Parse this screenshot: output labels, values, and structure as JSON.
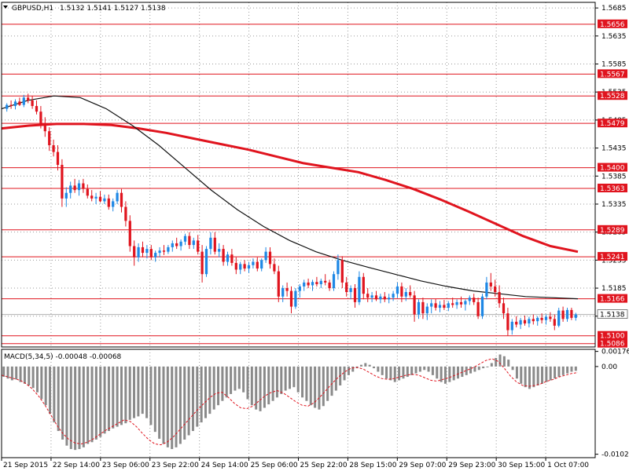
{
  "header": {
    "symbol": "GBPUSD,H1",
    "ohlc": "1.5132 1.5141 1.5127 1.5138"
  },
  "macd_header": "MACD(5,34,5) -0.00048 -0.00068",
  "colors": {
    "bull": "#1e88e5",
    "bear": "#e0141e",
    "level": "#e0141e",
    "ma_fast": "#111111",
    "ma_slow": "#e0141e",
    "grid": "#9a9a9a",
    "macd_hist": "#8a8a8a",
    "macd_signal": "#e0141e"
  },
  "chart_data": [
    {
      "type": "candlestick",
      "title": "GBPUSD,H1",
      "x_labels": [
        "21 Sep 2015",
        "22 Sep 14:00",
        "23 Sep 06:00",
        "23 Sep 22:00",
        "24 Sep 14:00",
        "25 Sep 06:00",
        "25 Sep 22:00",
        "28 Sep 15:00",
        "29 Sep 07:00",
        "29 Sep 23:00",
        "30 Sep 15:00",
        "1 Oct 07:00"
      ],
      "y_ticks": [
        "1.5685",
        "1.5635",
        "1.5585",
        "1.5535",
        "1.5485",
        "1.5435",
        "1.5385",
        "1.5335",
        "1.5285",
        "1.5235",
        "1.5185",
        "1.5135"
      ],
      "ylim": [
        1.508,
        1.5695
      ],
      "levels": [
        "1.5656",
        "1.5567",
        "1.5528",
        "1.5479",
        "1.5400",
        "1.5363",
        "1.5289",
        "1.5241",
        "1.5166",
        "1.5100",
        "1.5086"
      ],
      "current_price": "1.5138",
      "candles": [
        [
          1.5505,
          1.5515,
          1.55,
          1.5512
        ],
        [
          1.5512,
          1.552,
          1.5505,
          1.551
        ],
        [
          1.551,
          1.5522,
          1.5504,
          1.5518
        ],
        [
          1.5518,
          1.5525,
          1.551,
          1.5512
        ],
        [
          1.5512,
          1.553,
          1.5508,
          1.5525
        ],
        [
          1.5525,
          1.5532,
          1.5515,
          1.552
        ],
        [
          1.552,
          1.5528,
          1.5505,
          1.551
        ],
        [
          1.551,
          1.552,
          1.5495,
          1.55
        ],
        [
          1.55,
          1.551,
          1.547,
          1.5475
        ],
        [
          1.5475,
          1.549,
          1.5455,
          1.5465
        ],
        [
          1.5465,
          1.5472,
          1.543,
          1.544
        ],
        [
          1.544,
          1.545,
          1.542,
          1.5428
        ],
        [
          1.5428,
          1.544,
          1.5395,
          1.5405
        ],
        [
          1.5405,
          1.5415,
          1.533,
          1.5345
        ],
        [
          1.5345,
          1.5365,
          1.533,
          1.5355
        ],
        [
          1.5355,
          1.5375,
          1.5345,
          1.5368
        ],
        [
          1.5368,
          1.538,
          1.5355,
          1.536
        ],
        [
          1.536,
          1.5378,
          1.535,
          1.5372
        ],
        [
          1.5372,
          1.538,
          1.5355,
          1.5362
        ],
        [
          1.5362,
          1.537,
          1.5345,
          1.535
        ],
        [
          1.535,
          1.536,
          1.534,
          1.5345
        ],
        [
          1.5345,
          1.5355,
          1.5335,
          1.5348
        ],
        [
          1.5348,
          1.5358,
          1.5338,
          1.534
        ],
        [
          1.534,
          1.5352,
          1.5335,
          1.5345
        ],
        [
          1.5345,
          1.5352,
          1.5325,
          1.533
        ],
        [
          1.533,
          1.5345,
          1.5322,
          1.534
        ],
        [
          1.534,
          1.536,
          1.5335,
          1.5355
        ],
        [
          1.5355,
          1.5362,
          1.532,
          1.533
        ],
        [
          1.533,
          1.534,
          1.5295,
          1.5305
        ],
        [
          1.5305,
          1.5315,
          1.525,
          1.526
        ],
        [
          1.526,
          1.527,
          1.5225,
          1.524
        ],
        [
          1.524,
          1.5265,
          1.5232,
          1.5258
        ],
        [
          1.5258,
          1.5268,
          1.524,
          1.5248
        ],
        [
          1.5248,
          1.5262,
          1.5238,
          1.5255
        ],
        [
          1.5255,
          1.5262,
          1.5235,
          1.524
        ],
        [
          1.524,
          1.5252,
          1.5232,
          1.5248
        ],
        [
          1.5248,
          1.5258,
          1.524,
          1.5252
        ],
        [
          1.5252,
          1.5262,
          1.5244,
          1.525
        ],
        [
          1.525,
          1.5262,
          1.5246,
          1.5258
        ],
        [
          1.5258,
          1.527,
          1.525,
          1.5265
        ],
        [
          1.5265,
          1.5275,
          1.5255,
          1.526
        ],
        [
          1.526,
          1.5272,
          1.5252,
          1.5268
        ],
        [
          1.5268,
          1.5282,
          1.5262,
          1.5278
        ],
        [
          1.5278,
          1.5285,
          1.5255,
          1.5262
        ],
        [
          1.5262,
          1.5275,
          1.5255,
          1.527
        ],
        [
          1.527,
          1.528,
          1.5245,
          1.525
        ],
        [
          1.525,
          1.5262,
          1.5195,
          1.521
        ],
        [
          1.521,
          1.526,
          1.5205,
          1.5255
        ],
        [
          1.5255,
          1.5285,
          1.5245,
          1.5275
        ],
        [
          1.5275,
          1.5285,
          1.5245,
          1.525
        ],
        [
          1.525,
          1.5265,
          1.524,
          1.5255
        ],
        [
          1.5255,
          1.5262,
          1.5225,
          1.5232
        ],
        [
          1.5232,
          1.525,
          1.5225,
          1.5245
        ],
        [
          1.5245,
          1.5255,
          1.5225,
          1.523
        ],
        [
          1.523,
          1.524,
          1.521,
          1.5218
        ],
        [
          1.5218,
          1.5232,
          1.521,
          1.5228
        ],
        [
          1.5228,
          1.5235,
          1.5215,
          1.522
        ],
        [
          1.522,
          1.5232,
          1.5212,
          1.5226
        ],
        [
          1.5226,
          1.5238,
          1.522,
          1.5232
        ],
        [
          1.5232,
          1.524,
          1.5215,
          1.522
        ],
        [
          1.522,
          1.5238,
          1.5215,
          1.5235
        ],
        [
          1.5235,
          1.5258,
          1.523,
          1.525
        ],
        [
          1.525,
          1.5258,
          1.522,
          1.5228
        ],
        [
          1.5228,
          1.5238,
          1.521,
          1.5215
        ],
        [
          1.5215,
          1.5225,
          1.516,
          1.517
        ],
        [
          1.517,
          1.519,
          1.516,
          1.5185
        ],
        [
          1.5185,
          1.5195,
          1.517,
          1.518
        ],
        [
          1.518,
          1.5188,
          1.514,
          1.5152
        ],
        [
          1.5152,
          1.5185,
          1.5148,
          1.518
        ],
        [
          1.518,
          1.5192,
          1.5168,
          1.5188
        ],
        [
          1.5188,
          1.52,
          1.518,
          1.5195
        ],
        [
          1.5195,
          1.5202,
          1.5185,
          1.519
        ],
        [
          1.519,
          1.52,
          1.518,
          1.5196
        ],
        [
          1.5196,
          1.5205,
          1.5188,
          1.5192
        ],
        [
          1.5192,
          1.5202,
          1.5185,
          1.5198
        ],
        [
          1.5198,
          1.521,
          1.519,
          1.5195
        ],
        [
          1.5195,
          1.52,
          1.518,
          1.5185
        ],
        [
          1.5185,
          1.5215,
          1.518,
          1.521
        ],
        [
          1.521,
          1.5245,
          1.52,
          1.5235
        ],
        [
          1.5235,
          1.5242,
          1.5185,
          1.5195
        ],
        [
          1.5195,
          1.5205,
          1.517,
          1.5178
        ],
        [
          1.5178,
          1.519,
          1.5165,
          1.5185
        ],
        [
          1.5185,
          1.5192,
          1.515,
          1.516
        ],
        [
          1.516,
          1.5215,
          1.5155,
          1.5205
        ],
        [
          1.5205,
          1.5212,
          1.5165,
          1.5175
        ],
        [
          1.5175,
          1.5185,
          1.516,
          1.5168
        ],
        [
          1.5168,
          1.5178,
          1.516,
          1.5172
        ],
        [
          1.5172,
          1.518,
          1.5162,
          1.5165
        ],
        [
          1.5165,
          1.5175,
          1.5158,
          1.517
        ],
        [
          1.517,
          1.5178,
          1.516,
          1.5165
        ],
        [
          1.5165,
          1.5175,
          1.5158,
          1.5168
        ],
        [
          1.5168,
          1.518,
          1.5162,
          1.5175
        ],
        [
          1.5175,
          1.5195,
          1.5168,
          1.5188
        ],
        [
          1.5188,
          1.5195,
          1.516,
          1.517
        ],
        [
          1.517,
          1.5185,
          1.5162,
          1.5178
        ],
        [
          1.5178,
          1.519,
          1.5168,
          1.5172
        ],
        [
          1.5172,
          1.518,
          1.5125,
          1.5138
        ],
        [
          1.5138,
          1.5165,
          1.513,
          1.516
        ],
        [
          1.516,
          1.5168,
          1.513,
          1.514
        ],
        [
          1.514,
          1.5158,
          1.5128,
          1.5152
        ],
        [
          1.5152,
          1.5165,
          1.514,
          1.5158
        ],
        [
          1.5158,
          1.5166,
          1.5145,
          1.515
        ],
        [
          1.515,
          1.5162,
          1.5142,
          1.5155
        ],
        [
          1.5155,
          1.5164,
          1.5146,
          1.515
        ],
        [
          1.515,
          1.5162,
          1.5144,
          1.5158
        ],
        [
          1.5158,
          1.5168,
          1.515,
          1.5155
        ],
        [
          1.5155,
          1.5165,
          1.5148,
          1.516
        ],
        [
          1.516,
          1.517,
          1.515,
          1.5156
        ],
        [
          1.5156,
          1.5165,
          1.5145,
          1.5162
        ],
        [
          1.5162,
          1.5172,
          1.5155,
          1.5168
        ],
        [
          1.5168,
          1.5175,
          1.5155,
          1.516
        ],
        [
          1.516,
          1.5168,
          1.513,
          1.5135
        ],
        [
          1.5135,
          1.5175,
          1.513,
          1.517
        ],
        [
          1.517,
          1.5205,
          1.5165,
          1.5195
        ],
        [
          1.5195,
          1.5212,
          1.518,
          1.5188
        ],
        [
          1.5188,
          1.52,
          1.517,
          1.5178
        ],
        [
          1.5178,
          1.519,
          1.515,
          1.5158
        ],
        [
          1.5158,
          1.5168,
          1.513,
          1.514
        ],
        [
          1.514,
          1.515,
          1.51,
          1.511
        ],
        [
          1.511,
          1.513,
          1.5102,
          1.5125
        ],
        [
          1.5125,
          1.5135,
          1.5115,
          1.512
        ],
        [
          1.512,
          1.5132,
          1.5112,
          1.5128
        ],
        [
          1.5128,
          1.5136,
          1.5118,
          1.5122
        ],
        [
          1.5122,
          1.5134,
          1.5115,
          1.513
        ],
        [
          1.513,
          1.5138,
          1.512,
          1.5126
        ],
        [
          1.5126,
          1.5135,
          1.5118,
          1.5132
        ],
        [
          1.5132,
          1.514,
          1.5122,
          1.5128
        ],
        [
          1.5128,
          1.5138,
          1.512,
          1.5134
        ],
        [
          1.5134,
          1.5142,
          1.5125,
          1.513
        ],
        [
          1.513,
          1.5138,
          1.511,
          1.5118
        ],
        [
          1.5118,
          1.515,
          1.5115,
          1.5145
        ],
        [
          1.5145,
          1.5152,
          1.5125,
          1.513
        ],
        [
          1.513,
          1.515,
          1.5125,
          1.5146
        ],
        [
          1.5146,
          1.515,
          1.5128,
          1.5132
        ],
        [
          1.5132,
          1.5141,
          1.5127,
          1.5138
        ]
      ],
      "ma_fast": [
        1.5505,
        1.552,
        1.5528,
        1.5525,
        1.5505,
        1.5475,
        1.544,
        1.54,
        1.536,
        1.5325,
        1.5295,
        1.527,
        1.525,
        1.5235,
        1.5222,
        1.521,
        1.5198,
        1.5188,
        1.518,
        1.5175,
        1.517,
        1.5168,
        1.5166
      ],
      "ma_slow": [
        1.547,
        1.5475,
        1.5478,
        1.5478,
        1.5476,
        1.547,
        1.5462,
        1.5452,
        1.5442,
        1.5432,
        1.542,
        1.5408,
        1.54,
        1.5392,
        1.5378,
        1.5362,
        1.5343,
        1.5322,
        1.53,
        1.5278,
        1.526,
        1.525
      ]
    },
    {
      "type": "bar",
      "title": "MACD(5,34,5) -0.00048 -0.00068",
      "y_ticks": [
        "0.00176",
        "0.00",
        "-0.0102"
      ],
      "ylim": [
        -0.0106,
        0.002
      ],
      "histogram": [
        -0.0012,
        -0.0014,
        -0.0016,
        -0.0015,
        -0.0018,
        -0.002,
        -0.0022,
        -0.0025,
        -0.003,
        -0.0038,
        -0.0045,
        -0.0055,
        -0.0065,
        -0.0075,
        -0.0085,
        -0.0092,
        -0.0096,
        -0.0097,
        -0.0096,
        -0.0094,
        -0.009,
        -0.0088,
        -0.0085,
        -0.0082,
        -0.0078,
        -0.0075,
        -0.0072,
        -0.007,
        -0.0068,
        -0.0066,
        -0.0062,
        -0.006,
        -0.0058,
        -0.0055,
        -0.006,
        -0.0068,
        -0.0076,
        -0.0084,
        -0.009,
        -0.0094,
        -0.0096,
        -0.0094,
        -0.009,
        -0.0085,
        -0.008,
        -0.0075,
        -0.007,
        -0.0065,
        -0.006,
        -0.0055,
        -0.005,
        -0.0045,
        -0.004,
        -0.0036,
        -0.0032,
        -0.0028,
        -0.0026,
        -0.003,
        -0.0038,
        -0.0045,
        -0.005,
        -0.0052,
        -0.0048,
        -0.0044,
        -0.004,
        -0.0036,
        -0.0032,
        -0.0028,
        -0.0026,
        -0.0024,
        -0.003,
        -0.0036,
        -0.004,
        -0.0045,
        -0.0048,
        -0.005,
        -0.0046,
        -0.004,
        -0.0034,
        -0.0028,
        -0.0022,
        -0.0016,
        -0.001,
        -0.0006,
        -0.0002,
        0.0002,
        0.0004,
        0.0002,
        -0.0002,
        -0.0006,
        -0.001,
        -0.0014,
        -0.0016,
        -0.0018,
        -0.0016,
        -0.0014,
        -0.0012,
        -0.001,
        -0.0008,
        -0.0006,
        -0.0004,
        -0.0006,
        -0.001,
        -0.0014,
        -0.0018,
        -0.002,
        -0.0018,
        -0.0016,
        -0.0014,
        -0.0012,
        -0.001,
        -0.0008,
        -0.0006,
        -0.0004,
        -0.0002,
        0.0,
        0.0004,
        0.001,
        0.0014,
        0.0012,
        0.0008,
        -0.0004,
        -0.0014,
        -0.002,
        -0.0024,
        -0.0026,
        -0.0024,
        -0.0022,
        -0.002,
        -0.0018,
        -0.0016,
        -0.0014,
        -0.0012,
        -0.001,
        -0.0008,
        -0.0006,
        -0.0005
      ],
      "signal": [
        -0.001,
        -0.0012,
        -0.0014,
        -0.0016,
        -0.002,
        -0.0026,
        -0.0034,
        -0.0044,
        -0.0056,
        -0.0068,
        -0.0078,
        -0.0085,
        -0.0089,
        -0.009,
        -0.0088,
        -0.0084,
        -0.0079,
        -0.0074,
        -0.007,
        -0.0066,
        -0.0062,
        -0.0064,
        -0.007,
        -0.0078,
        -0.0085,
        -0.009,
        -0.0091,
        -0.0088,
        -0.0082,
        -0.0074,
        -0.0066,
        -0.0058,
        -0.005,
        -0.0043,
        -0.0036,
        -0.0031,
        -0.003,
        -0.0036,
        -0.0043,
        -0.0048,
        -0.0049,
        -0.0046,
        -0.004,
        -0.0034,
        -0.003,
        -0.0028,
        -0.0031,
        -0.0036,
        -0.0041,
        -0.0045,
        -0.0046,
        -0.0042,
        -0.0035,
        -0.0027,
        -0.0019,
        -0.0012,
        -0.0006,
        -0.0002,
        -0.0001,
        -0.0003,
        -0.0007,
        -0.0011,
        -0.0014,
        -0.0015,
        -0.0014,
        -0.0012,
        -0.001,
        -0.0009,
        -0.001,
        -0.0013,
        -0.0016,
        -0.0017,
        -0.0015,
        -0.0013,
        -0.001,
        -0.0007,
        -0.0004,
        -0.0001,
        0.0003,
        0.0007,
        0.0009,
        0.0006,
        -0.0002,
        -0.0011,
        -0.0018,
        -0.0022,
        -0.0023,
        -0.0022,
        -0.002,
        -0.0017,
        -0.0015,
        -0.0012,
        -0.001,
        -0.0008,
        -0.0007
      ]
    }
  ]
}
